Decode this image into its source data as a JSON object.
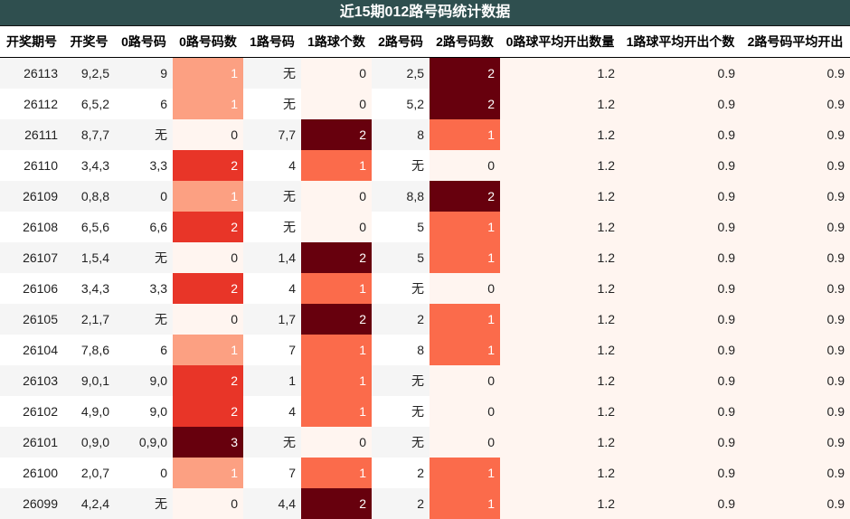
{
  "title": "近15期012路号码统计数据",
  "columns": [
    "开奖期号",
    "开奖号",
    "0路号码",
    "0路号码数",
    "1路号码",
    "1路球个数",
    "2路号码",
    "2路号码数",
    "0路球平均开出数量",
    "1路球平均开出个数",
    "2路号码平均开出"
  ],
  "colors": {
    "header_bg": "#2f4f4f",
    "heat_min": "#fff5f0",
    "heat_max": "#67000d"
  },
  "chart_data": {
    "type": "table",
    "title": "近15期012路号码统计数据",
    "rows": [
      [
        "26113",
        "9,2,5",
        "9",
        "1",
        "无",
        "0",
        "2,5",
        "2",
        "1.2",
        "0.9",
        "0.9"
      ],
      [
        "26112",
        "6,5,2",
        "6",
        "1",
        "无",
        "0",
        "5,2",
        "2",
        "1.2",
        "0.9",
        "0.9"
      ],
      [
        "26111",
        "8,7,7",
        "无",
        "0",
        "7,7",
        "2",
        "8",
        "1",
        "1.2",
        "0.9",
        "0.9"
      ],
      [
        "26110",
        "3,4,3",
        "3,3",
        "2",
        "4",
        "1",
        "无",
        "0",
        "1.2",
        "0.9",
        "0.9"
      ],
      [
        "26109",
        "0,8,8",
        "0",
        "1",
        "无",
        "0",
        "8,8",
        "2",
        "1.2",
        "0.9",
        "0.9"
      ],
      [
        "26108",
        "6,5,6",
        "6,6",
        "2",
        "无",
        "0",
        "5",
        "1",
        "1.2",
        "0.9",
        "0.9"
      ],
      [
        "26107",
        "1,5,4",
        "无",
        "0",
        "1,4",
        "2",
        "5",
        "1",
        "1.2",
        "0.9",
        "0.9"
      ],
      [
        "26106",
        "3,4,3",
        "3,3",
        "2",
        "4",
        "1",
        "无",
        "0",
        "1.2",
        "0.9",
        "0.9"
      ],
      [
        "26105",
        "2,1,7",
        "无",
        "0",
        "1,7",
        "2",
        "2",
        "1",
        "1.2",
        "0.9",
        "0.9"
      ],
      [
        "26104",
        "7,8,6",
        "6",
        "1",
        "7",
        "1",
        "8",
        "1",
        "1.2",
        "0.9",
        "0.9"
      ],
      [
        "26103",
        "9,0,1",
        "9,0",
        "2",
        "1",
        "1",
        "无",
        "0",
        "1.2",
        "0.9",
        "0.9"
      ],
      [
        "26102",
        "4,9,0",
        "9,0",
        "2",
        "4",
        "1",
        "无",
        "0",
        "1.2",
        "0.9",
        "0.9"
      ],
      [
        "26101",
        "0,9,0",
        "0,9,0",
        "3",
        "无",
        "0",
        "无",
        "0",
        "1.2",
        "0.9",
        "0.9"
      ],
      [
        "26100",
        "2,0,7",
        "0",
        "1",
        "7",
        "1",
        "2",
        "1",
        "1.2",
        "0.9",
        "0.9"
      ],
      [
        "26099",
        "4,2,4",
        "无",
        "0",
        "4,4",
        "2",
        "2",
        "1",
        "1.2",
        "0.9",
        "0.9"
      ]
    ]
  }
}
